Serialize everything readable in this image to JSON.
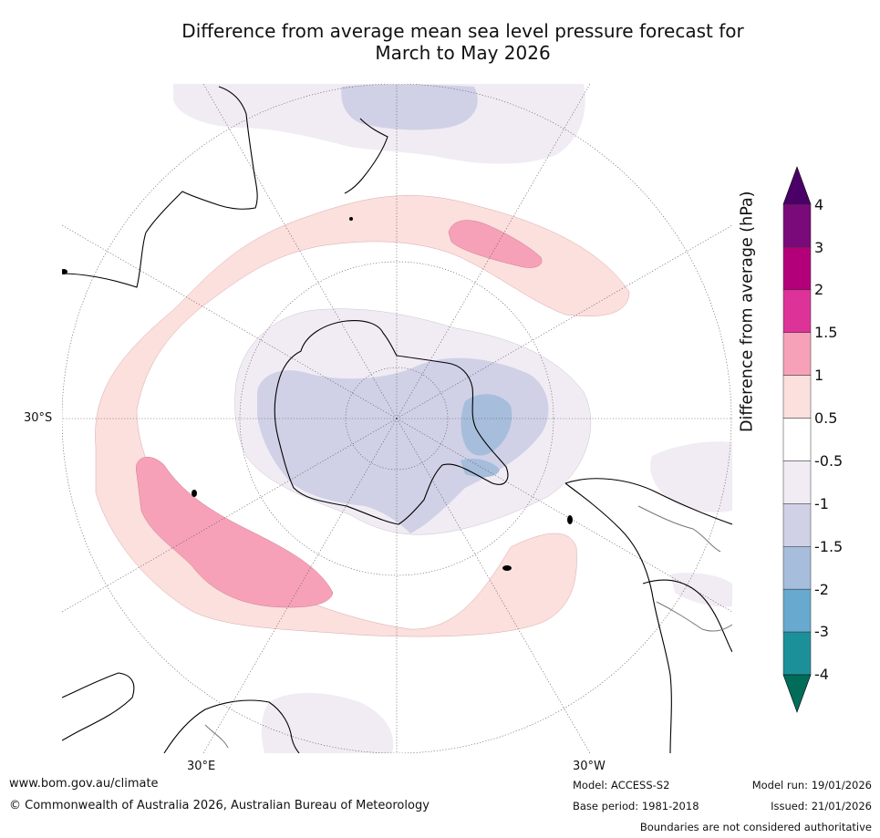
{
  "title": {
    "line1": "Difference from average mean sea level pressure forecast for",
    "line2": "March to May 2026"
  },
  "map_labels": {
    "lat_30s": "30°S",
    "lon_30e": "30°E",
    "lon_30w": "30°W"
  },
  "colorbar": {
    "title": "Difference from average (hPa)",
    "ticks": [
      "4",
      "3",
      "2",
      "1.5",
      "1",
      "0.5",
      "-0.5",
      "-1",
      "-1.5",
      "-2",
      "-3",
      "-4"
    ],
    "colors_top_to_bottom": [
      "#4b0068",
      "#7a0a7a",
      "#b3007a",
      "#dd3399",
      "#f7a1b9",
      "#fbe0dd",
      "#ffffff",
      "#f1ecf4",
      "#d0d1e6",
      "#a6bddb",
      "#67a9cf",
      "#1c9099",
      "#016c59"
    ]
  },
  "footer": {
    "url": "www.bom.gov.au/climate",
    "copyright": "© Commonwealth of Australia 2026, Australian Bureau of Meteorology",
    "model": "Model: ACCESS-S2",
    "base_period": "Base period: 1981-2018",
    "model_run": "Model run: 19/01/2026",
    "issued": "Issued: 21/01/2026",
    "disclaimer": "Boundaries are not considered authoritative"
  }
}
